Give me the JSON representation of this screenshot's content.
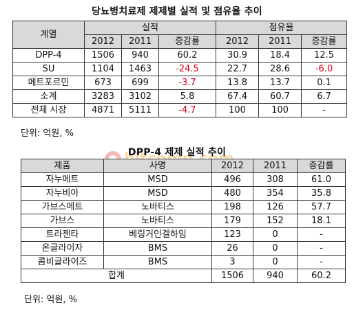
{
  "table1": {
    "title": "당뇨병치료제 제제별 실적 및 점유율 추이",
    "header": {
      "col_group": "계열",
      "sales_group": "실적",
      "share_group": "점유율",
      "sales_cols": [
        "2012",
        "2011",
        "증감률"
      ],
      "share_cols": [
        "2012",
        "2011",
        "증감률"
      ]
    },
    "rows": [
      {
        "name": "DPP-4",
        "s2012": "1506",
        "s2011": "940",
        "sgr": "60.2",
        "p2012": "30.9",
        "p2011": "18.4",
        "pgr": "12.5"
      },
      {
        "name": "SU",
        "s2012": "1104",
        "s2011": "1463",
        "sgr": "-24.5",
        "p2012": "22.7",
        "p2011": "28.6",
        "pgr": "-6.0"
      },
      {
        "name": "메트포르민",
        "s2012": "673",
        "s2011": "699",
        "sgr": "-3.7",
        "p2012": "13.8",
        "p2011": "13.7",
        "pgr": "0.1"
      },
      {
        "name": "소계",
        "s2012": "3283",
        "s2011": "3102",
        "sgr": "5.8",
        "p2012": "67.4",
        "p2011": "60.7",
        "pgr": "6.7"
      },
      {
        "name": "전체 시장",
        "s2012": "4871",
        "s2011": "5111",
        "sgr": "-4.7",
        "p2012": "100",
        "p2011": "100",
        "pgr": "-"
      }
    ],
    "note": "단위: 억원, %"
  },
  "table2": {
    "title": "DPP-4 제제 실적 추이",
    "header": {
      "product": "제품",
      "company": "사명",
      "y2012": "2012",
      "y2011": "2011",
      "growth": "증감률"
    },
    "rows": [
      {
        "product": "자누메트",
        "company": "MSD",
        "y2012": "496",
        "y2011": "308",
        "growth": "61.0"
      },
      {
        "product": "자누비아",
        "company": "MSD",
        "y2012": "480",
        "y2011": "354",
        "growth": "35.8"
      },
      {
        "product": "가브스메트",
        "company": "노바티스",
        "y2012": "198",
        "y2011": "126",
        "growth": "57.7"
      },
      {
        "product": "가브스",
        "company": "노바티스",
        "y2012": "179",
        "y2011": "152",
        "growth": "18.1"
      },
      {
        "product": "트라젠타",
        "company": "베링거인겔하임",
        "y2012": "123",
        "y2011": "0",
        "growth": "-"
      },
      {
        "product": "온글라이자",
        "company": "BMS",
        "y2012": "26",
        "y2011": "0",
        "growth": "-"
      },
      {
        "product": "콤비글라이즈",
        "company": "BMS",
        "y2012": "3",
        "y2011": "0",
        "growth": "-"
      }
    ],
    "total": {
      "label": "합계",
      "y2012": "1506",
      "y2011": "940",
      "growth": "60.2"
    },
    "note": "단위: 억원, %"
  },
  "watermark": {
    "text": "hitcomp.com",
    "color_dot": "#e53935",
    "color_text": "#f39c12"
  },
  "colors": {
    "header_bg": "#d9d9d9",
    "negative": "#d0021b"
  }
}
